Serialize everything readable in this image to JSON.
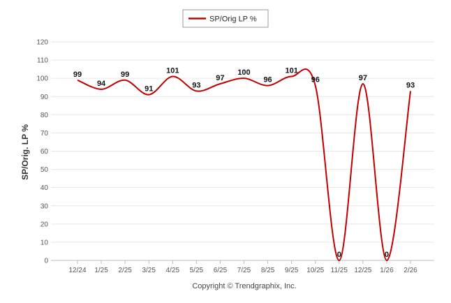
{
  "chart_data": {
    "type": "line",
    "categories": [
      "12/24",
      "1/25",
      "2/25",
      "3/25",
      "4/25",
      "5/25",
      "6/25",
      "7/25",
      "8/25",
      "9/25",
      "10/25",
      "11/25",
      "12/25",
      "1/26",
      "2/26"
    ],
    "series": [
      {
        "name": "SP/Orig LP %",
        "color": "#c00000",
        "values": [
          99,
          94,
          99,
          91,
          101,
          93,
          97,
          100,
          96,
          101,
          96,
          0,
          97,
          0,
          93
        ]
      }
    ],
    "title": "",
    "xlabel": "",
    "ylabel": "SP/Orig. LP %",
    "ylim": [
      0,
      120
    ],
    "yticks": [
      0,
      10,
      20,
      30,
      40,
      50,
      60,
      70,
      80,
      90,
      100,
      110,
      120
    ],
    "grid": true,
    "legend_position": "top-center"
  },
  "copyright": "Copyright © Trendgraphix, Inc."
}
